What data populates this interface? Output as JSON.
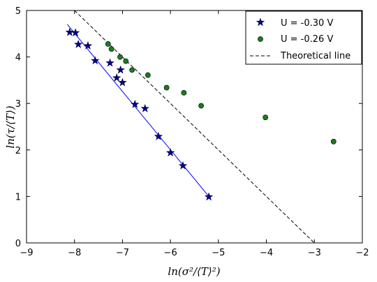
{
  "chart_data": {
    "type": "scatter",
    "title": "",
    "xlabel": "ln(σ²/⟨T⟩²)",
    "ylabel": "ln(τ/⟨T⟩)",
    "xlim": [
      -9,
      -2
    ],
    "ylim": [
      0,
      5
    ],
    "xticks": [
      "−9",
      "−8",
      "−7",
      "−6",
      "−5",
      "−4",
      "−3",
      "−2"
    ],
    "yticks": [
      "0",
      "1",
      "2",
      "3",
      "4",
      "5"
    ],
    "grid": false,
    "legend_position": "top-right",
    "series": [
      {
        "name": "U = -0.30 V",
        "marker": "star",
        "color": "#00008b",
        "x": [
          -8.1,
          -7.98,
          -7.92,
          -7.72,
          -7.57,
          -7.26,
          -7.12,
          -7.04,
          -7.0,
          -6.74,
          -6.53,
          -6.25,
          -6.0,
          -5.74,
          -5.2
        ],
        "y": [
          4.53,
          4.52,
          4.27,
          4.24,
          3.92,
          3.87,
          3.55,
          3.72,
          3.45,
          2.98,
          2.89,
          2.29,
          1.94,
          1.66,
          0.99
        ]
      },
      {
        "name": "U = -0.26 V",
        "marker": "circle",
        "color": "#1c7a1c",
        "x": [
          -7.3,
          -7.23,
          -7.05,
          -6.93,
          -6.8,
          -6.47,
          -6.08,
          -5.72,
          -5.36,
          -4.02,
          -2.6
        ],
        "y": [
          4.28,
          4.17,
          4.0,
          3.91,
          3.72,
          3.61,
          3.34,
          3.23,
          2.95,
          2.7,
          2.18
        ]
      }
    ],
    "fit_line": {
      "color": "#0000ff",
      "x": [
        -8.15,
        -5.2
      ],
      "y": [
        4.7,
        1.0
      ]
    },
    "theoretical_line": {
      "name": "Theoretical line",
      "style": "dashed",
      "color": "#000000",
      "x": [
        -8.0,
        -3.0
      ],
      "y": [
        5.0,
        0.0
      ]
    }
  }
}
